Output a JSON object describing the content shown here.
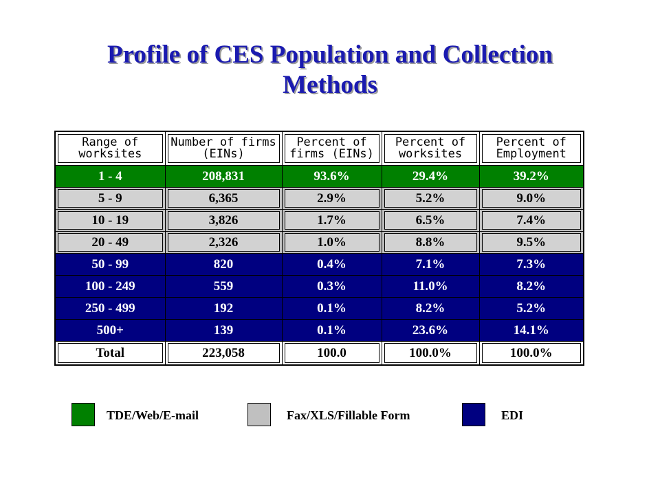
{
  "title": {
    "line1": "Profile of CES Population and Collection",
    "line2": "Methods"
  },
  "colors": {
    "title": "#1a1ab0",
    "green": "#008000",
    "gray": "#c0c0c0",
    "navy": "#000080"
  },
  "table": {
    "headers": [
      [
        "Range of",
        "worksites"
      ],
      [
        "Number of firms",
        "(EINs)"
      ],
      [
        "Percent of",
        "firms (EINs)"
      ],
      [
        "Percent of",
        "worksites"
      ],
      [
        "Percent of",
        "Employment"
      ]
    ],
    "rows": [
      {
        "style": "green",
        "cells": [
          "1 - 4",
          "208,831",
          "93.6%",
          "29.4%",
          "39.2%"
        ]
      },
      {
        "style": "gray",
        "cells": [
          "5 - 9",
          "6,365",
          "2.9%",
          "5.2%",
          "9.0%"
        ]
      },
      {
        "style": "gray",
        "cells": [
          "10 - 19",
          "3,826",
          "1.7%",
          "6.5%",
          "7.4%"
        ]
      },
      {
        "style": "gray",
        "cells": [
          "20 - 49",
          "2,326",
          "1.0%",
          "8.8%",
          "9.5%"
        ]
      },
      {
        "style": "navy",
        "cells": [
          "50 - 99",
          "820",
          "0.4%",
          "7.1%",
          "7.3%"
        ]
      },
      {
        "style": "navy",
        "cells": [
          "100 - 249",
          "559",
          "0.3%",
          "11.0%",
          "8.2%"
        ]
      },
      {
        "style": "navy",
        "cells": [
          "250 - 499",
          "192",
          "0.1%",
          "8.2%",
          "5.2%"
        ]
      },
      {
        "style": "navy",
        "cells": [
          "500+",
          "139",
          "0.1%",
          "23.6%",
          "14.1%"
        ]
      },
      {
        "style": "white",
        "cells": [
          "Total",
          "223,058",
          "100.0",
          "100.0%",
          "100.0%"
        ]
      }
    ]
  },
  "legend": [
    {
      "label": "TDE/Web/E-mail",
      "color": "#008000"
    },
    {
      "label": "Fax/XLS/Fillable Form",
      "color": "#c0c0c0"
    },
    {
      "label": "EDI",
      "color": "#000080"
    }
  ]
}
